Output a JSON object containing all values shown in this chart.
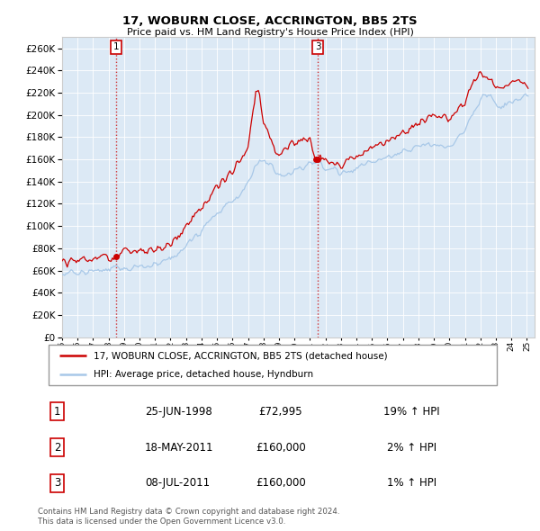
{
  "title1": "17, WOBURN CLOSE, ACCRINGTON, BB5 2TS",
  "title2": "Price paid vs. HM Land Registry's House Price Index (HPI)",
  "background_color": "#dce9f5",
  "hpi_color": "#a8c8e8",
  "price_color": "#cc0000",
  "ylim": [
    0,
    270000
  ],
  "yticks": [
    0,
    20000,
    40000,
    60000,
    80000,
    100000,
    120000,
    140000,
    160000,
    180000,
    200000,
    220000,
    240000,
    260000
  ],
  "xlim_left": 1995.0,
  "xlim_right": 2025.5,
  "legend_label_red": "17, WOBURN CLOSE, ACCRINGTON, BB5 2TS (detached house)",
  "legend_label_blue": "HPI: Average price, detached house, Hyndburn",
  "transaction1_label": "1",
  "transaction1_date": "25-JUN-1998",
  "transaction1_price": "£72,995",
  "transaction1_hpi": "19% ↑ HPI",
  "transaction2_label": "2",
  "transaction2_date": "18-MAY-2011",
  "transaction2_price": "£160,000",
  "transaction2_hpi": "2% ↑ HPI",
  "transaction3_label": "3",
  "transaction3_date": "08-JUL-2011",
  "transaction3_price": "£160,000",
  "transaction3_hpi": "1% ↑ HPI",
  "footer1": "Contains HM Land Registry data © Crown copyright and database right 2024.",
  "footer2": "This data is licensed under the Open Government Licence v3.0.",
  "sale1_year": 1998.47,
  "sale1_price": 72995,
  "sale2_year": 2011.37,
  "sale2_price": 160000,
  "sale3_year": 2011.52,
  "sale3_price": 160000,
  "grid_color": "#ffffff",
  "spine_color": "#cccccc"
}
